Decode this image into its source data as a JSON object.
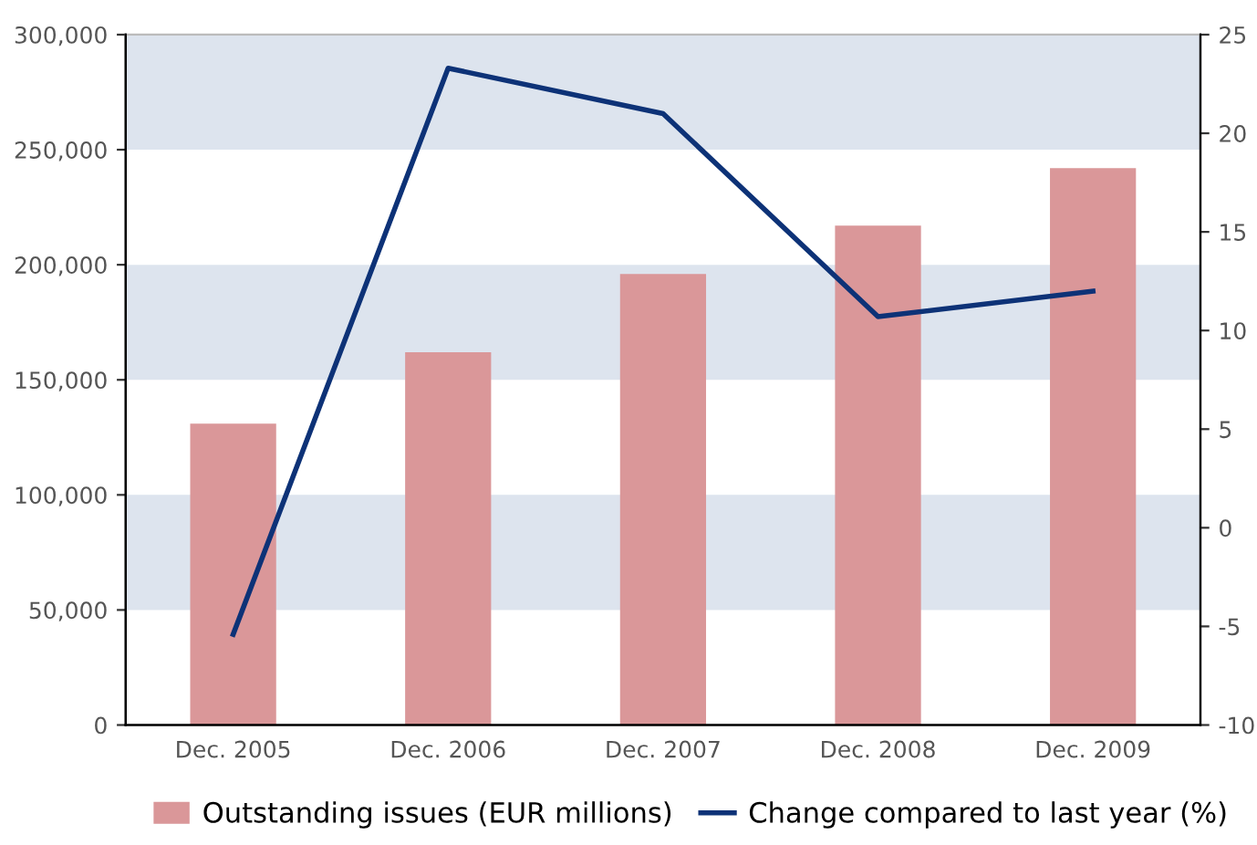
{
  "chart_data": {
    "type": "bar",
    "categories": [
      "Dec. 2005",
      "Dec. 2006",
      "Dec. 2007",
      "Dec. 2008",
      "Dec. 2009"
    ],
    "series": [
      {
        "name": "Outstanding issues (EUR millions)",
        "color": "#da9799",
        "values": [
          131000,
          162000,
          196000,
          217000,
          242000
        ]
      },
      {
        "name": "Change compared to last year (%)",
        "type": "line",
        "axis": "y2",
        "color": "#0d3277",
        "values": [
          -5.4,
          23.3,
          21.0,
          10.7,
          12.0
        ]
      }
    ],
    "ylim": [
      0,
      300000
    ],
    "yticks": [
      {
        "value": 0,
        "label": "0"
      },
      {
        "value": 50000,
        "label": "50,000"
      },
      {
        "value": 100000,
        "label": "100,000"
      },
      {
        "value": 150000,
        "label": "150,000"
      },
      {
        "value": 200000,
        "label": "200,000"
      },
      {
        "value": 250000,
        "label": "250,000"
      },
      {
        "value": 300000,
        "label": "300,000"
      }
    ],
    "y2lim": [
      -10,
      25
    ],
    "y2ticks": [
      -10,
      -5,
      0,
      5,
      10,
      15,
      20,
      25
    ],
    "bands": [
      {
        "axis": "y",
        "from": 50000,
        "to": 100000,
        "color": "#dde4ee"
      },
      {
        "axis": "y",
        "from": 150000,
        "to": 200000,
        "color": "#dde4ee"
      },
      {
        "axis": "y",
        "from": 250000,
        "to": 300000,
        "color": "#dde4ee"
      }
    ],
    "grid": false,
    "legend": "bottom"
  }
}
